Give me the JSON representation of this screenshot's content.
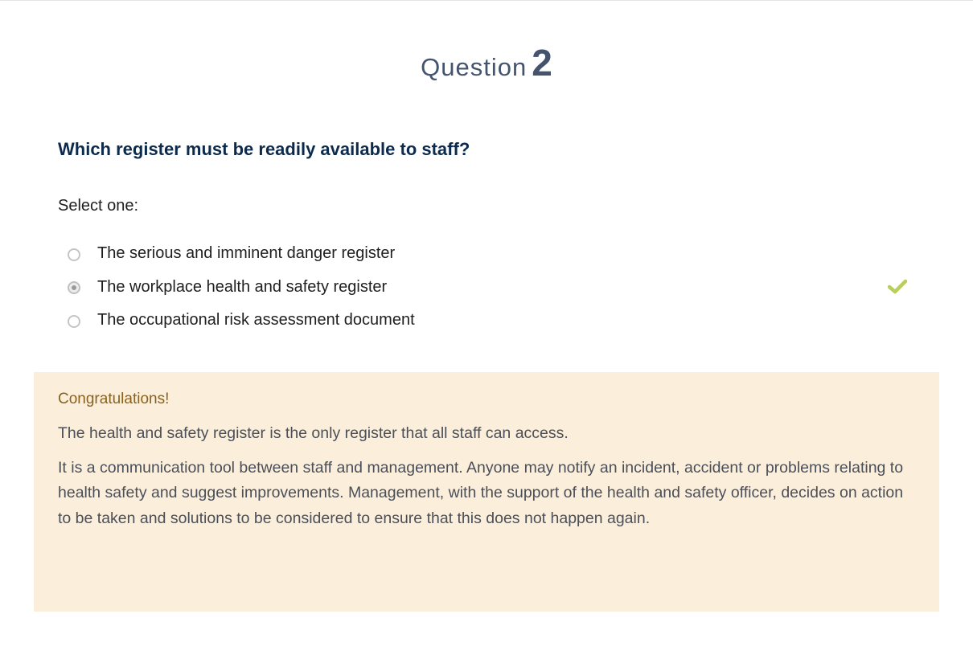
{
  "question": {
    "word": "Question",
    "number": "2",
    "text": "Which register must be readily available to staff?",
    "select_label": "Select one:"
  },
  "options": [
    {
      "label": "The serious and imminent danger register",
      "selected": false
    },
    {
      "label": "The workplace health and safety register",
      "selected": true,
      "correct_icon": "checkmark-icon"
    },
    {
      "label": "The occupational risk assessment document",
      "selected": false
    }
  ],
  "feedback": {
    "title": "Congratulations!",
    "paragraph1": "The health and safety register is the only register that all staff can access.",
    "paragraph2": "It is a communication tool between staff and management. Anyone may notify an incident, accident or problems relating to health safety and suggest improvements. Management, with the support of the health and safety officer, decides on action to be taken and solutions to be considered to ensure that this does not happen again."
  },
  "colors": {
    "heading": "#44546e",
    "question_text": "#0c2a4c",
    "correct_check": "#b9cf5b",
    "feedback_bg": "#fbeedb",
    "feedback_title": "#8a6220"
  }
}
